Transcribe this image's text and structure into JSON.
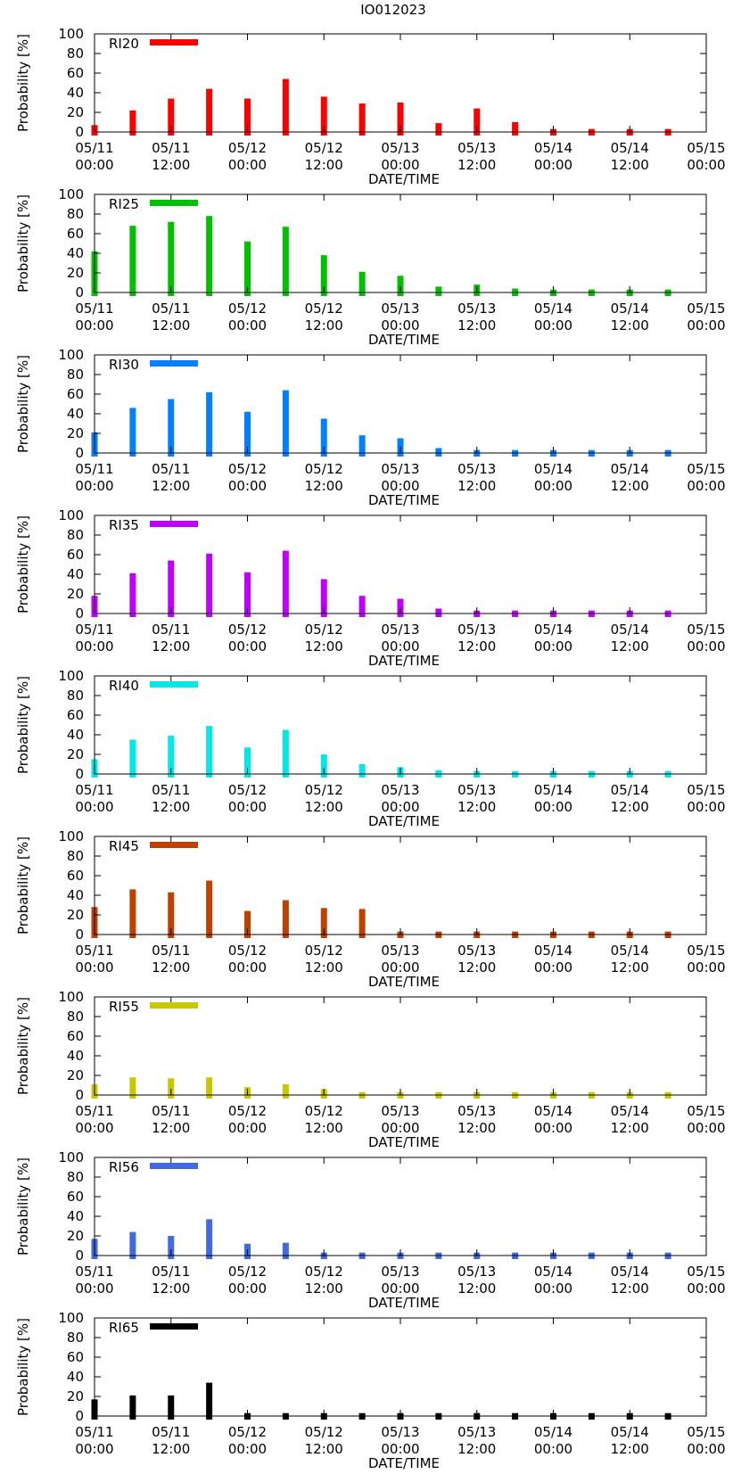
{
  "title": "IO012023",
  "chart_data": [
    {
      "type": "bar",
      "legend": "RI20",
      "color": "#ff0000",
      "ylabel": "Probability [%]",
      "xlabel": "DATE/TIME",
      "ylim": [
        0,
        100
      ],
      "yticks": [
        0,
        20,
        40,
        60,
        80,
        100
      ],
      "xtick_labels": [
        [
          "05/11",
          "00:00"
        ],
        [
          "05/11",
          "12:00"
        ],
        [
          "05/12",
          "00:00"
        ],
        [
          "05/12",
          "12:00"
        ],
        [
          "05/13",
          "00:00"
        ],
        [
          "05/13",
          "12:00"
        ],
        [
          "05/14",
          "00:00"
        ],
        [
          "05/14",
          "12:00"
        ],
        [
          "05/15",
          "00:00"
        ]
      ],
      "x_hours": [
        0,
        6,
        12,
        18,
        24,
        30,
        36,
        42,
        48,
        54,
        60,
        66,
        72,
        78,
        84,
        90
      ],
      "values": [
        7,
        22,
        34,
        44,
        34,
        54,
        36,
        29,
        30,
        9,
        24,
        10,
        3,
        3,
        3,
        3
      ]
    },
    {
      "type": "bar",
      "legend": "RI25",
      "color": "#00c000",
      "ylabel": "Probability [%]",
      "xlabel": "DATE/TIME",
      "ylim": [
        0,
        100
      ],
      "yticks": [
        0,
        20,
        40,
        60,
        80,
        100
      ],
      "xtick_labels": [
        [
          "05/11",
          "00:00"
        ],
        [
          "05/11",
          "12:00"
        ],
        [
          "05/12",
          "00:00"
        ],
        [
          "05/12",
          "12:00"
        ],
        [
          "05/13",
          "00:00"
        ],
        [
          "05/13",
          "12:00"
        ],
        [
          "05/14",
          "00:00"
        ],
        [
          "05/14",
          "12:00"
        ],
        [
          "05/15",
          "00:00"
        ]
      ],
      "x_hours": [
        0,
        6,
        12,
        18,
        24,
        30,
        36,
        42,
        48,
        54,
        60,
        66,
        72,
        78,
        84,
        90
      ],
      "values": [
        42,
        68,
        72,
        78,
        52,
        67,
        38,
        21,
        17,
        6,
        8,
        4,
        3,
        3,
        3,
        3
      ]
    },
    {
      "type": "bar",
      "legend": "RI30",
      "color": "#0080ff",
      "ylabel": "Probability [%]",
      "xlabel": "DATE/TIME",
      "ylim": [
        0,
        100
      ],
      "yticks": [
        0,
        20,
        40,
        60,
        80,
        100
      ],
      "xtick_labels": [
        [
          "05/11",
          "00:00"
        ],
        [
          "05/11",
          "12:00"
        ],
        [
          "05/12",
          "00:00"
        ],
        [
          "05/12",
          "12:00"
        ],
        [
          "05/13",
          "00:00"
        ],
        [
          "05/13",
          "12:00"
        ],
        [
          "05/14",
          "00:00"
        ],
        [
          "05/14",
          "12:00"
        ],
        [
          "05/15",
          "00:00"
        ]
      ],
      "x_hours": [
        0,
        6,
        12,
        18,
        24,
        30,
        36,
        42,
        48,
        54,
        60,
        66,
        72,
        78,
        84,
        90
      ],
      "values": [
        21,
        46,
        55,
        62,
        42,
        64,
        35,
        18,
        15,
        5,
        3,
        3,
        3,
        3,
        3,
        3
      ]
    },
    {
      "type": "bar",
      "legend": "RI35",
      "color": "#c000ff",
      "ylabel": "Probability [%]",
      "xlabel": "DATE/TIME",
      "ylim": [
        0,
        100
      ],
      "yticks": [
        0,
        20,
        40,
        60,
        80,
        100
      ],
      "xtick_labels": [
        [
          "05/11",
          "00:00"
        ],
        [
          "05/11",
          "12:00"
        ],
        [
          "05/12",
          "00:00"
        ],
        [
          "05/12",
          "12:00"
        ],
        [
          "05/13",
          "00:00"
        ],
        [
          "05/13",
          "12:00"
        ],
        [
          "05/14",
          "00:00"
        ],
        [
          "05/14",
          "12:00"
        ],
        [
          "05/15",
          "00:00"
        ]
      ],
      "x_hours": [
        0,
        6,
        12,
        18,
        24,
        30,
        36,
        42,
        48,
        54,
        60,
        66,
        72,
        78,
        84,
        90
      ],
      "values": [
        18,
        41,
        54,
        61,
        42,
        64,
        35,
        18,
        15,
        5,
        3,
        3,
        3,
        3,
        3,
        3
      ]
    },
    {
      "type": "bar",
      "legend": "RI40",
      "color": "#00e8e8",
      "ylabel": "Probability [%]",
      "xlabel": "DATE/TIME",
      "ylim": [
        0,
        100
      ],
      "yticks": [
        0,
        20,
        40,
        60,
        80,
        100
      ],
      "xtick_labels": [
        [
          "05/11",
          "00:00"
        ],
        [
          "05/11",
          "12:00"
        ],
        [
          "05/12",
          "00:00"
        ],
        [
          "05/12",
          "12:00"
        ],
        [
          "05/13",
          "00:00"
        ],
        [
          "05/13",
          "12:00"
        ],
        [
          "05/14",
          "00:00"
        ],
        [
          "05/14",
          "12:00"
        ],
        [
          "05/15",
          "00:00"
        ]
      ],
      "x_hours": [
        0,
        6,
        12,
        18,
        24,
        30,
        36,
        42,
        48,
        54,
        60,
        66,
        72,
        78,
        84,
        90
      ],
      "values": [
        15,
        35,
        39,
        49,
        27,
        45,
        20,
        10,
        7,
        4,
        3,
        3,
        3,
        3,
        3,
        3
      ]
    },
    {
      "type": "bar",
      "legend": "RI45",
      "color": "#c04000",
      "ylabel": "Probability [%]",
      "xlabel": "DATE/TIME",
      "ylim": [
        0,
        100
      ],
      "yticks": [
        0,
        20,
        40,
        60,
        80,
        100
      ],
      "xtick_labels": [
        [
          "05/11",
          "00:00"
        ],
        [
          "05/11",
          "12:00"
        ],
        [
          "05/12",
          "00:00"
        ],
        [
          "05/12",
          "12:00"
        ],
        [
          "05/13",
          "00:00"
        ],
        [
          "05/13",
          "12:00"
        ],
        [
          "05/14",
          "00:00"
        ],
        [
          "05/14",
          "12:00"
        ],
        [
          "05/15",
          "00:00"
        ]
      ],
      "x_hours": [
        0,
        6,
        12,
        18,
        24,
        30,
        36,
        42,
        48,
        54,
        60,
        66,
        72,
        78,
        84,
        90
      ],
      "values": [
        28,
        46,
        43,
        55,
        24,
        35,
        27,
        26,
        3,
        3,
        3,
        3,
        3,
        3,
        3,
        3
      ]
    },
    {
      "type": "bar",
      "legend": "RI55",
      "color": "#c8c800",
      "ylabel": "Probability [%]",
      "xlabel": "DATE/TIME",
      "ylim": [
        0,
        100
      ],
      "yticks": [
        0,
        20,
        40,
        60,
        80,
        100
      ],
      "xtick_labels": [
        [
          "05/11",
          "00:00"
        ],
        [
          "05/11",
          "12:00"
        ],
        [
          "05/12",
          "00:00"
        ],
        [
          "05/12",
          "12:00"
        ],
        [
          "05/13",
          "00:00"
        ],
        [
          "05/13",
          "12:00"
        ],
        [
          "05/14",
          "00:00"
        ],
        [
          "05/14",
          "12:00"
        ],
        [
          "05/15",
          "00:00"
        ]
      ],
      "x_hours": [
        0,
        6,
        12,
        18,
        24,
        30,
        36,
        42,
        48,
        54,
        60,
        66,
        72,
        78,
        84,
        90
      ],
      "values": [
        11,
        18,
        17,
        18,
        8,
        11,
        6,
        3,
        3,
        3,
        3,
        3,
        3,
        3,
        3,
        3
      ]
    },
    {
      "type": "bar",
      "legend": "RI56",
      "color": "#4169e1",
      "ylabel": "Probability [%]",
      "xlabel": "DATE/TIME",
      "ylim": [
        0,
        100
      ],
      "yticks": [
        0,
        20,
        40,
        60,
        80,
        100
      ],
      "xtick_labels": [
        [
          "05/11",
          "00:00"
        ],
        [
          "05/11",
          "12:00"
        ],
        [
          "05/12",
          "00:00"
        ],
        [
          "05/12",
          "12:00"
        ],
        [
          "05/13",
          "00:00"
        ],
        [
          "05/13",
          "12:00"
        ],
        [
          "05/14",
          "00:00"
        ],
        [
          "05/14",
          "12:00"
        ],
        [
          "05/15",
          "00:00"
        ]
      ],
      "x_hours": [
        0,
        6,
        12,
        18,
        24,
        30,
        36,
        42,
        48,
        54,
        60,
        66,
        72,
        78,
        84,
        90
      ],
      "values": [
        17,
        24,
        20,
        37,
        12,
        13,
        3,
        3,
        3,
        3,
        3,
        3,
        3,
        3,
        3,
        3
      ]
    },
    {
      "type": "bar",
      "legend": "RI65",
      "color": "#000000",
      "ylabel": "Probability [%]",
      "xlabel": "DATE/TIME",
      "ylim": [
        0,
        100
      ],
      "yticks": [
        0,
        20,
        40,
        60,
        80,
        100
      ],
      "xtick_labels": [
        [
          "05/11",
          "00:00"
        ],
        [
          "05/11",
          "12:00"
        ],
        [
          "05/12",
          "00:00"
        ],
        [
          "05/12",
          "12:00"
        ],
        [
          "05/13",
          "00:00"
        ],
        [
          "05/13",
          "12:00"
        ],
        [
          "05/14",
          "00:00"
        ],
        [
          "05/14",
          "12:00"
        ],
        [
          "05/15",
          "00:00"
        ]
      ],
      "x_hours": [
        0,
        6,
        12,
        18,
        24,
        30,
        36,
        42,
        48,
        54,
        60,
        66,
        72,
        78,
        84,
        90
      ],
      "values": [
        17,
        21,
        21,
        34,
        3,
        3,
        3,
        3,
        3,
        3,
        3,
        3,
        3,
        3,
        3,
        3
      ]
    }
  ]
}
